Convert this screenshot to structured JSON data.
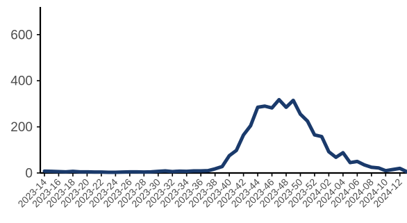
{
  "chart_data": {
    "type": "line",
    "title": "",
    "xlabel": "",
    "ylabel": "",
    "ylim": [
      0,
      720
    ],
    "yticks": [
      0,
      200,
      400,
      600
    ],
    "line_color": "#1a3a6b",
    "grid": false,
    "legend": "none",
    "x": [
      "2023-14",
      "2023-15",
      "2023-16",
      "2023-17",
      "2023-18",
      "2023-19",
      "2023-20",
      "2023-21",
      "2023-22",
      "2023-23",
      "2023-24",
      "2023-25",
      "2023-26",
      "2023-27",
      "2023-28",
      "2023-29",
      "2023-30",
      "2023-31",
      "2023-32",
      "2023-33",
      "2023-34",
      "2023-35",
      "2023-36",
      "2023-37",
      "2023-38",
      "2023-39",
      "2023-40",
      "2023-41",
      "2023-42",
      "2023-43",
      "2023-44",
      "2023-45",
      "2023-46",
      "2023-47",
      "2023-48",
      "2023-49",
      "2023-50",
      "2023-51",
      "2023-52",
      "2024-01",
      "2024-02",
      "2024-03",
      "2024-04",
      "2024-05",
      "2024-06",
      "2024-07",
      "2024-08",
      "2024-09",
      "2024-10",
      "2024-11",
      "2024-12",
      "2024-13"
    ],
    "xtick_labels": [
      "2023-14",
      "2023-16",
      "2023-18",
      "2023-20",
      "2023-22",
      "2023-24",
      "2023-26",
      "2023-28",
      "2023-30",
      "2023-32",
      "2023-34",
      "2023-36",
      "2023-38",
      "2023-40",
      "2023-42",
      "2023-44",
      "2023-46",
      "2023-48",
      "2023-50",
      "2023-52",
      "2024-02",
      "2024-04",
      "2024-06",
      "2024-08",
      "2024-10",
      "2024-12"
    ],
    "series": [
      {
        "values": [
          8,
          7,
          6,
          5,
          7,
          5,
          5,
          4,
          4,
          3,
          3,
          4,
          5,
          5,
          4,
          5,
          7,
          9,
          6,
          8,
          7,
          9,
          9,
          10,
          18,
          28,
          75,
          98,
          165,
          205,
          285,
          290,
          282,
          318,
          285,
          315,
          255,
          225,
          165,
          158,
          92,
          68,
          88,
          45,
          50,
          35,
          25,
          22,
          10,
          15,
          20,
          5
        ]
      }
    ]
  }
}
